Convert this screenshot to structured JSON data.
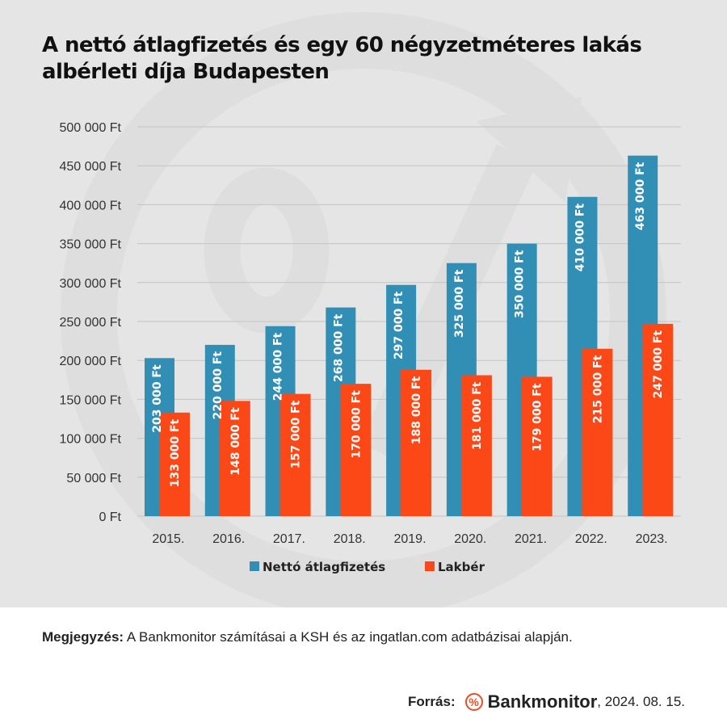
{
  "title": "A nettó átlagfizetés és egy 60 négyzetméteres lakás albérleti díja Budapesten",
  "colors": {
    "salary": "#318fb5",
    "rent": "#fc4717",
    "background": "#e5e5e5",
    "grid": "#c4c4c4",
    "watermark": "#dedede",
    "brand_accent": "#f04a23"
  },
  "chart_data": {
    "type": "bar",
    "title": "A nettó átlagfizetés és egy 60 négyzetméteres lakás albérleti díja Budapesten",
    "xlabel": "",
    "ylabel": "",
    "categories": [
      "2015.",
      "2016.",
      "2017.",
      "2018.",
      "2019.",
      "2020.",
      "2021.",
      "2022.",
      "2023."
    ],
    "series": [
      {
        "name": "Nettó átlagfizetés",
        "color": "#318fb5",
        "values": [
          203000,
          220000,
          244000,
          268000,
          297000,
          325000,
          350000,
          410000,
          463000
        ],
        "labels": [
          "203 000 Ft",
          "220 000 Ft",
          "244 000 Ft",
          "268 000 Ft",
          "297 000 Ft",
          "325 000 Ft",
          "350 000 Ft",
          "410 000 Ft",
          "463 000 Ft"
        ]
      },
      {
        "name": "Lakbér",
        "color": "#fc4717",
        "values": [
          133000,
          148000,
          157000,
          170000,
          188000,
          181000,
          179000,
          215000,
          247000
        ],
        "labels": [
          "133 000 Ft",
          "148 000 Ft",
          "157 000 Ft",
          "170 000 Ft",
          "188 000 Ft",
          "181 000 Ft",
          "179 000 Ft",
          "215 000 Ft",
          "247 000 Ft"
        ]
      }
    ],
    "ylim": [
      0,
      500000
    ],
    "yticks": [
      0,
      50000,
      100000,
      150000,
      200000,
      250000,
      300000,
      350000,
      400000,
      450000,
      500000
    ],
    "ytick_labels": [
      "0 Ft",
      "50 000 Ft",
      "100 000 Ft",
      "150 000 Ft",
      "200 000 Ft",
      "250 000 Ft",
      "300 000 Ft",
      "350 000 Ft",
      "400 000 Ft",
      "450 000 Ft",
      "500 000 Ft"
    ],
    "grid": true,
    "legend": {
      "placement": "bottom-center",
      "entries": [
        "Nettó átlagfizetés",
        "Lakbér"
      ]
    },
    "data_labels": "inside-top-rotated"
  },
  "footer": {
    "note_label": "Megjegyzés:",
    "note_text": " A Bankmonitor számításai a KSH és az ingatlan.com adatbázisai alapján.",
    "source_label": "Forrás:",
    "logo_glyph": "%",
    "brand": "Bankmonitor",
    "date": ", 2024. 08. 15."
  }
}
